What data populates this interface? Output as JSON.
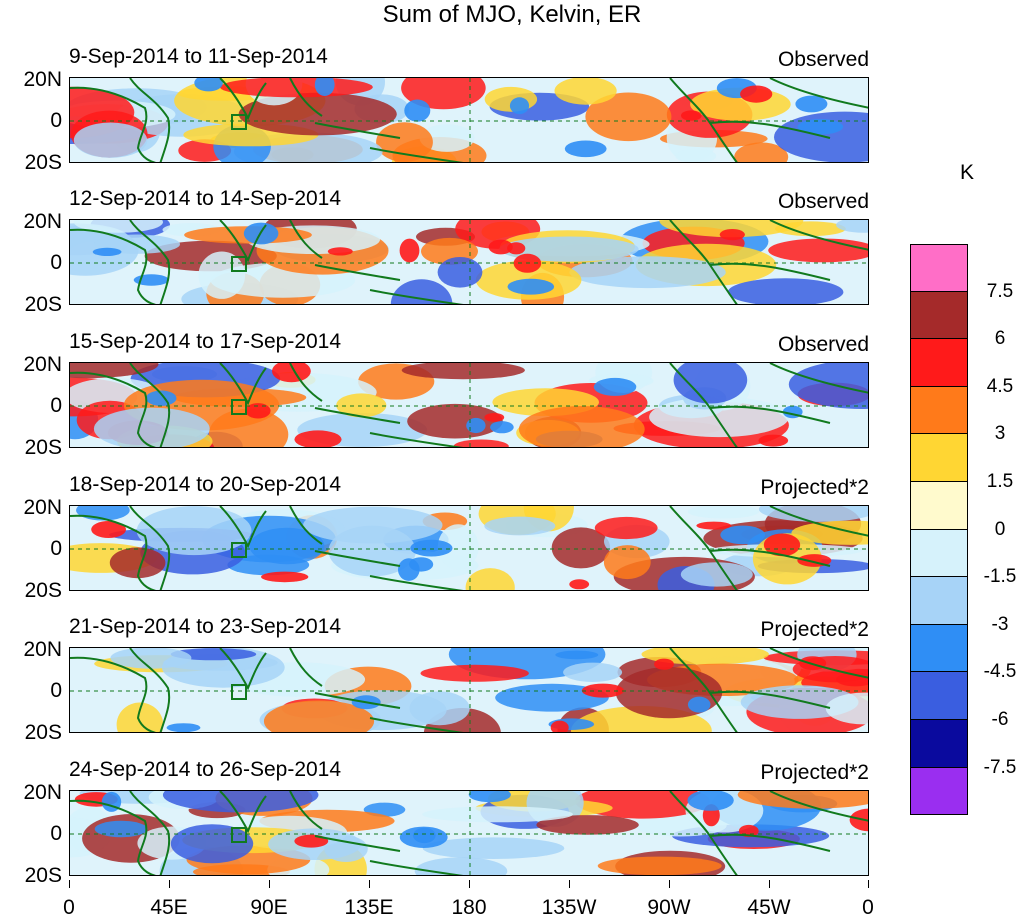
{
  "title": "Sum of MJO, Kelvin, ER",
  "panels": [
    {
      "date_range": "9-Sep-2014 to 11-Sep-2014",
      "tag": "Observed"
    },
    {
      "date_range": "12-Sep-2014 to 14-Sep-2014",
      "tag": "Observed"
    },
    {
      "date_range": "15-Sep-2014 to 17-Sep-2014",
      "tag": "Observed"
    },
    {
      "date_range": "18-Sep-2014 to 20-Sep-2014",
      "tag": "Projected*2"
    },
    {
      "date_range": "21-Sep-2014 to 23-Sep-2014",
      "tag": "Projected*2"
    },
    {
      "date_range": "24-Sep-2014 to 26-Sep-2014",
      "tag": "Projected*2"
    }
  ],
  "lat_labels": {
    "north": "20N",
    "equator": "0",
    "south": "20S"
  },
  "lon_labels": [
    "0",
    "45E",
    "90E",
    "135E",
    "180",
    "135W",
    "90W",
    "45W",
    "0"
  ],
  "colorbar": {
    "unit": "K",
    "levels": [
      "7.5",
      "6",
      "4.5",
      "3",
      "1.5",
      "0",
      "-1.5",
      "-3",
      "-4.5",
      "-6",
      "-7.5"
    ],
    "colors": [
      "#ff6ec7",
      "#a52a2a",
      "#ff1a1a",
      "#ff7a1a",
      "#ffd633",
      "#fffacd",
      "#d6f2fb",
      "#a7d3f7",
      "#2f8ef5",
      "#3a5ee0",
      "#0a0a9e",
      "#9a2ef0"
    ]
  },
  "colors": {
    "coastline": "#117a1e",
    "equator_line": "#117a1e"
  }
}
